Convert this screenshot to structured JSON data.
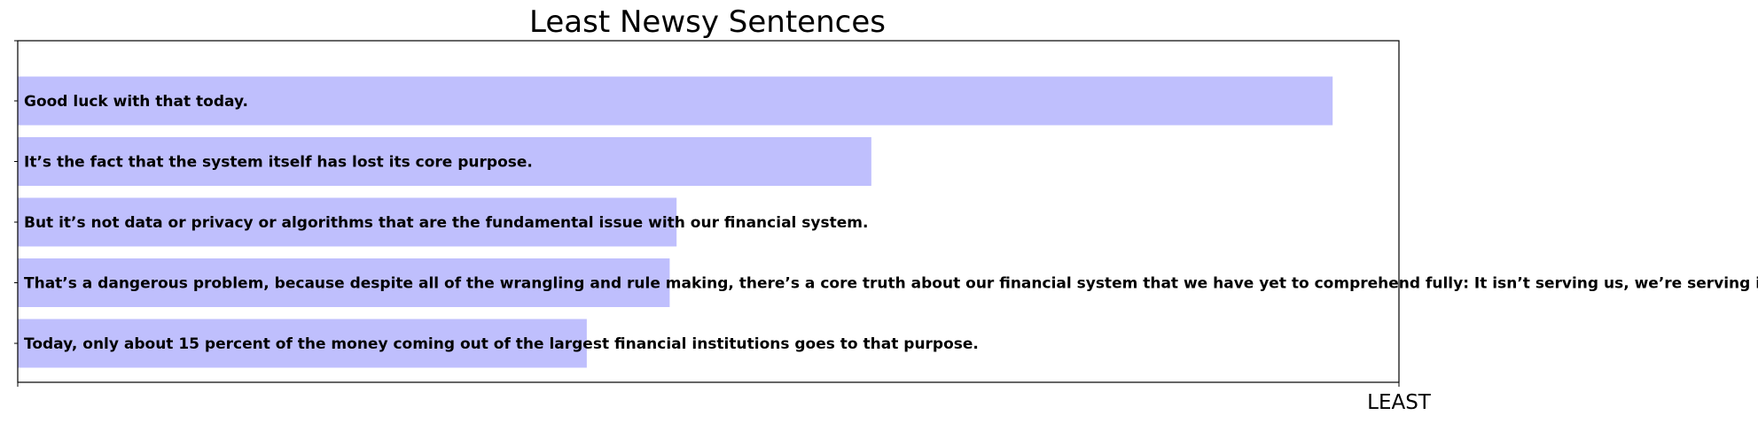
{
  "chart_data": {
    "type": "bar",
    "orientation": "horizontal",
    "title": "Least Newsy Sentences",
    "xlabel": "LEAST",
    "ylabel": "",
    "categories": [
      "Good luck with that today.",
      "It’s the fact that the system itself has lost its core purpose.",
      "But it’s not data or privacy or algorithms that are the fundamental issue with our financial system.",
      "That’s a dangerous problem, because despite all of the wrangling and rule making, there’s a core truth about our financial system that we have yet to comprehend fully: It isn’t serving us, we’re serving it.",
      "Today, only about 15 percent of the money coming out of the largest financial institutions goes to that purpose."
    ],
    "values": [
      0.952,
      0.618,
      0.477,
      0.472,
      0.412
    ],
    "xlim": [
      0,
      1
    ],
    "grid": false,
    "legend": "none",
    "colors": {
      "bar": "#bfbffd",
      "axis": "#000000",
      "text": "#000000"
    }
  }
}
